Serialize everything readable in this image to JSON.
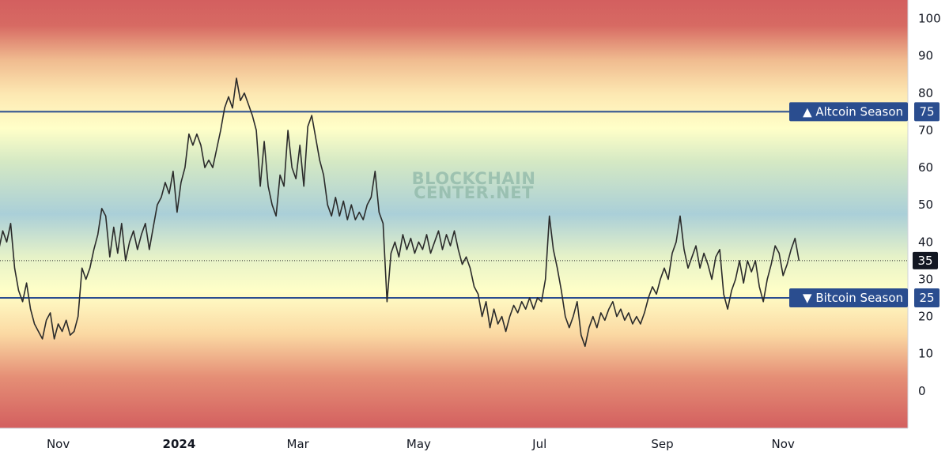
{
  "chart_data": {
    "type": "line",
    "watermark": [
      "BLOCKCHAIN",
      "CENTER.NET"
    ],
    "x_ticks": [
      {
        "label": "Nov",
        "bold": false,
        "date": "2023-11-01"
      },
      {
        "label": "2024",
        "bold": true,
        "date": "2024-01-01"
      },
      {
        "label": "Mar",
        "bold": false,
        "date": "2024-03-01"
      },
      {
        "label": "May",
        "bold": false,
        "date": "2024-05-01"
      },
      {
        "label": "Jul",
        "bold": false,
        "date": "2024-07-01"
      },
      {
        "label": "Sep",
        "bold": false,
        "date": "2024-09-01"
      },
      {
        "label": "Nov",
        "bold": false,
        "date": "2024-11-01"
      }
    ],
    "y_ticks": [
      "0",
      "10",
      "20",
      "30",
      "40",
      "50",
      "60",
      "70",
      "80",
      "90",
      "100"
    ],
    "ylim": [
      -10,
      105
    ],
    "thresholds": [
      {
        "label": "▲ Altcoin Season",
        "value": "75",
        "level": 75
      },
      {
        "label": "▼ Bitcoin Season",
        "value": "25",
        "level": 25
      }
    ],
    "current": {
      "value": "35",
      "level": 35
    },
    "colors": {
      "line": "#2b2b2b",
      "threshold": "#2a4d8f",
      "badge": "#131722",
      "band_red": "#d35f5f",
      "band_yellow": "#ffffc8",
      "band_blue": "#aacfd8"
    },
    "series": [
      {
        "values": [
          [
            "2023-10-02",
            38
          ],
          [
            "2023-10-04",
            43
          ],
          [
            "2023-10-06",
            40
          ],
          [
            "2023-10-08",
            45
          ],
          [
            "2023-10-10",
            33
          ],
          [
            "2023-10-12",
            27
          ],
          [
            "2023-10-14",
            24
          ],
          [
            "2023-10-16",
            29
          ],
          [
            "2023-10-18",
            22
          ],
          [
            "2023-10-20",
            18
          ],
          [
            "2023-10-22",
            16
          ],
          [
            "2023-10-24",
            14
          ],
          [
            "2023-10-26",
            19
          ],
          [
            "2023-10-28",
            21
          ],
          [
            "2023-10-30",
            14
          ],
          [
            "2023-11-01",
            18
          ],
          [
            "2023-11-03",
            16
          ],
          [
            "2023-11-05",
            19
          ],
          [
            "2023-11-07",
            15
          ],
          [
            "2023-11-09",
            16
          ],
          [
            "2023-11-11",
            20
          ],
          [
            "2023-11-13",
            33
          ],
          [
            "2023-11-15",
            30
          ],
          [
            "2023-11-17",
            33
          ],
          [
            "2023-11-19",
            38
          ],
          [
            "2023-11-21",
            42
          ],
          [
            "2023-11-23",
            49
          ],
          [
            "2023-11-25",
            47
          ],
          [
            "2023-11-27",
            36
          ],
          [
            "2023-11-29",
            44
          ],
          [
            "2023-12-01",
            37
          ],
          [
            "2023-12-03",
            45
          ],
          [
            "2023-12-05",
            35
          ],
          [
            "2023-12-07",
            40
          ],
          [
            "2023-12-09",
            43
          ],
          [
            "2023-12-11",
            38
          ],
          [
            "2023-12-13",
            42
          ],
          [
            "2023-12-15",
            45
          ],
          [
            "2023-12-17",
            38
          ],
          [
            "2023-12-19",
            44
          ],
          [
            "2023-12-21",
            50
          ],
          [
            "2023-12-23",
            52
          ],
          [
            "2023-12-25",
            56
          ],
          [
            "2023-12-27",
            53
          ],
          [
            "2023-12-29",
            59
          ],
          [
            "2023-12-31",
            48
          ],
          [
            "2024-01-02",
            56
          ],
          [
            "2024-01-04",
            60
          ],
          [
            "2024-01-06",
            69
          ],
          [
            "2024-01-08",
            66
          ],
          [
            "2024-01-10",
            69
          ],
          [
            "2024-01-12",
            66
          ],
          [
            "2024-01-14",
            60
          ],
          [
            "2024-01-16",
            62
          ],
          [
            "2024-01-18",
            60
          ],
          [
            "2024-01-20",
            65
          ],
          [
            "2024-01-22",
            70
          ],
          [
            "2024-01-24",
            76
          ],
          [
            "2024-01-26",
            79
          ],
          [
            "2024-01-28",
            76
          ],
          [
            "2024-01-30",
            84
          ],
          [
            "2024-02-01",
            78
          ],
          [
            "2024-02-03",
            80
          ],
          [
            "2024-02-05",
            77
          ],
          [
            "2024-02-07",
            74
          ],
          [
            "2024-02-09",
            70
          ],
          [
            "2024-02-11",
            55
          ],
          [
            "2024-02-13",
            67
          ],
          [
            "2024-02-15",
            55
          ],
          [
            "2024-02-17",
            50
          ],
          [
            "2024-02-19",
            47
          ],
          [
            "2024-02-21",
            58
          ],
          [
            "2024-02-23",
            55
          ],
          [
            "2024-02-25",
            70
          ],
          [
            "2024-02-27",
            60
          ],
          [
            "2024-02-29",
            57
          ],
          [
            "2024-03-02",
            66
          ],
          [
            "2024-03-04",
            55
          ],
          [
            "2024-03-06",
            71
          ],
          [
            "2024-03-08",
            74
          ],
          [
            "2024-03-10",
            68
          ],
          [
            "2024-03-12",
            62
          ],
          [
            "2024-03-14",
            58
          ],
          [
            "2024-03-16",
            50
          ],
          [
            "2024-03-18",
            47
          ],
          [
            "2024-03-20",
            52
          ],
          [
            "2024-03-22",
            47
          ],
          [
            "2024-03-24",
            51
          ],
          [
            "2024-03-26",
            46
          ],
          [
            "2024-03-28",
            50
          ],
          [
            "2024-03-30",
            46
          ],
          [
            "2024-04-01",
            48
          ],
          [
            "2024-04-03",
            46
          ],
          [
            "2024-04-05",
            50
          ],
          [
            "2024-04-07",
            52
          ],
          [
            "2024-04-09",
            59
          ],
          [
            "2024-04-11",
            48
          ],
          [
            "2024-04-13",
            45
          ],
          [
            "2024-04-15",
            24
          ],
          [
            "2024-04-17",
            37
          ],
          [
            "2024-04-19",
            40
          ],
          [
            "2024-04-21",
            36
          ],
          [
            "2024-04-23",
            42
          ],
          [
            "2024-04-25",
            38
          ],
          [
            "2024-04-27",
            41
          ],
          [
            "2024-04-29",
            37
          ],
          [
            "2024-05-01",
            40
          ],
          [
            "2024-05-03",
            38
          ],
          [
            "2024-05-05",
            42
          ],
          [
            "2024-05-07",
            37
          ],
          [
            "2024-05-09",
            40
          ],
          [
            "2024-05-11",
            43
          ],
          [
            "2024-05-13",
            38
          ],
          [
            "2024-05-15",
            42
          ],
          [
            "2024-05-17",
            39
          ],
          [
            "2024-05-19",
            43
          ],
          [
            "2024-05-21",
            38
          ],
          [
            "2024-05-23",
            34
          ],
          [
            "2024-05-25",
            36
          ],
          [
            "2024-05-27",
            33
          ],
          [
            "2024-05-29",
            28
          ],
          [
            "2024-05-31",
            26
          ],
          [
            "2024-06-02",
            20
          ],
          [
            "2024-06-04",
            24
          ],
          [
            "2024-06-06",
            17
          ],
          [
            "2024-06-08",
            22
          ],
          [
            "2024-06-10",
            18
          ],
          [
            "2024-06-12",
            20
          ],
          [
            "2024-06-14",
            16
          ],
          [
            "2024-06-16",
            20
          ],
          [
            "2024-06-18",
            23
          ],
          [
            "2024-06-20",
            21
          ],
          [
            "2024-06-22",
            24
          ],
          [
            "2024-06-24",
            22
          ],
          [
            "2024-06-26",
            25
          ],
          [
            "2024-06-28",
            22
          ],
          [
            "2024-06-30",
            25
          ],
          [
            "2024-07-02",
            24
          ],
          [
            "2024-07-04",
            30
          ],
          [
            "2024-07-06",
            47
          ],
          [
            "2024-07-08",
            38
          ],
          [
            "2024-07-10",
            33
          ],
          [
            "2024-07-12",
            27
          ],
          [
            "2024-07-14",
            20
          ],
          [
            "2024-07-16",
            17
          ],
          [
            "2024-07-18",
            20
          ],
          [
            "2024-07-20",
            24
          ],
          [
            "2024-07-22",
            15
          ],
          [
            "2024-07-24",
            12
          ],
          [
            "2024-07-26",
            17
          ],
          [
            "2024-07-28",
            20
          ],
          [
            "2024-07-30",
            17
          ],
          [
            "2024-08-01",
            21
          ],
          [
            "2024-08-03",
            19
          ],
          [
            "2024-08-05",
            22
          ],
          [
            "2024-08-07",
            24
          ],
          [
            "2024-08-09",
            20
          ],
          [
            "2024-08-11",
            22
          ],
          [
            "2024-08-13",
            19
          ],
          [
            "2024-08-15",
            21
          ],
          [
            "2024-08-17",
            18
          ],
          [
            "2024-08-19",
            20
          ],
          [
            "2024-08-21",
            18
          ],
          [
            "2024-08-23",
            21
          ],
          [
            "2024-08-25",
            25
          ],
          [
            "2024-08-27",
            28
          ],
          [
            "2024-08-29",
            26
          ],
          [
            "2024-08-31",
            30
          ],
          [
            "2024-09-02",
            33
          ],
          [
            "2024-09-04",
            30
          ],
          [
            "2024-09-06",
            37
          ],
          [
            "2024-09-08",
            40
          ],
          [
            "2024-09-10",
            47
          ],
          [
            "2024-09-12",
            38
          ],
          [
            "2024-09-14",
            33
          ],
          [
            "2024-09-16",
            36
          ],
          [
            "2024-09-18",
            39
          ],
          [
            "2024-09-20",
            33
          ],
          [
            "2024-09-22",
            37
          ],
          [
            "2024-09-24",
            34
          ],
          [
            "2024-09-26",
            30
          ],
          [
            "2024-09-28",
            36
          ],
          [
            "2024-09-30",
            38
          ],
          [
            "2024-10-02",
            26
          ],
          [
            "2024-10-04",
            22
          ],
          [
            "2024-10-06",
            27
          ],
          [
            "2024-10-08",
            30
          ],
          [
            "2024-10-10",
            35
          ],
          [
            "2024-10-12",
            29
          ],
          [
            "2024-10-14",
            35
          ],
          [
            "2024-10-16",
            32
          ],
          [
            "2024-10-18",
            35
          ],
          [
            "2024-10-20",
            28
          ],
          [
            "2024-10-22",
            24
          ],
          [
            "2024-10-24",
            30
          ],
          [
            "2024-10-26",
            34
          ],
          [
            "2024-10-28",
            39
          ],
          [
            "2024-10-30",
            37
          ],
          [
            "2024-11-01",
            31
          ],
          [
            "2024-11-03",
            34
          ],
          [
            "2024-11-05",
            38
          ],
          [
            "2024-11-07",
            41
          ],
          [
            "2024-11-09",
            35
          ]
        ]
      }
    ]
  }
}
